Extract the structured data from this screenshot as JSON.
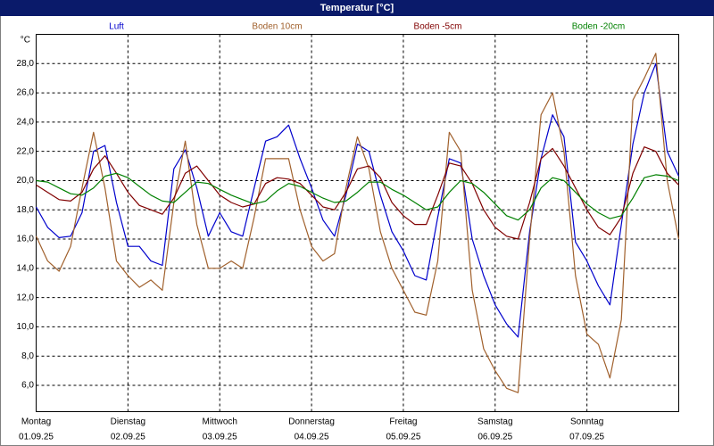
{
  "chart_data": {
    "type": "line",
    "title": "Temperatur [°C]",
    "ylabel": "°C",
    "x": [
      0,
      3,
      6,
      9,
      12,
      15,
      18,
      21,
      24,
      27,
      30,
      33,
      36,
      39,
      42,
      45,
      48,
      51,
      54,
      57,
      60,
      63,
      66,
      69,
      72,
      75,
      78,
      81,
      84,
      87,
      90,
      93,
      96,
      99,
      102,
      105,
      108,
      111,
      114,
      117,
      120,
      123,
      126,
      129,
      132,
      135,
      138,
      141,
      144,
      147,
      150,
      153,
      156,
      159,
      162,
      165,
      168
    ],
    "xlim": [
      0,
      168
    ],
    "xticks": [
      {
        "value": 0,
        "label": [
          "Montag",
          "01.09.25"
        ]
      },
      {
        "value": 24,
        "label": [
          "Dienstag",
          "02.09.25"
        ]
      },
      {
        "value": 48,
        "label": [
          "Mittwoch",
          "03.09.25"
        ]
      },
      {
        "value": 72,
        "label": [
          "Donnerstag",
          "04.09.25"
        ]
      },
      {
        "value": 96,
        "label": [
          "Freitag",
          "05.09.25"
        ]
      },
      {
        "value": 120,
        "label": [
          "Samstag",
          "06.09.25"
        ]
      },
      {
        "value": 144,
        "label": [
          "Sonntag",
          "07.09.25"
        ]
      }
    ],
    "ylim": [
      4.2,
      30
    ],
    "yticks": [
      {
        "value": 6,
        "label": "6,0"
      },
      {
        "value": 8,
        "label": "8,0"
      },
      {
        "value": 10,
        "label": "10,0"
      },
      {
        "value": 12,
        "label": "12,0"
      },
      {
        "value": 14,
        "label": "14,0"
      },
      {
        "value": 16,
        "label": "16,0"
      },
      {
        "value": 18,
        "label": "18,0"
      },
      {
        "value": 20,
        "label": "20,0"
      },
      {
        "value": 22,
        "label": "22,0"
      },
      {
        "value": 24,
        "label": "24,0"
      },
      {
        "value": 26,
        "label": "26,0"
      },
      {
        "value": 28,
        "label": "28,0"
      }
    ],
    "grid": true,
    "series": [
      {
        "name": "Luft",
        "color": "#0000cc",
        "values": [
          18.2,
          16.8,
          16.1,
          16.2,
          17.8,
          22.0,
          22.4,
          18.5,
          15.5,
          15.5,
          14.5,
          14.2,
          20.8,
          22.1,
          19.5,
          16.2,
          17.8,
          16.5,
          16.2,
          19.5,
          22.7,
          23.0,
          23.8,
          21.5,
          19.5,
          17.3,
          16.2,
          19.0,
          22.5,
          22.0,
          19.0,
          16.5,
          15.2,
          13.5,
          13.2,
          17.5,
          21.5,
          21.2,
          16.0,
          13.5,
          11.5,
          10.2,
          9.3,
          16.5,
          21.5,
          24.5,
          23.0,
          15.8,
          14.5,
          12.8,
          11.5,
          17.0,
          22.5,
          26.0,
          28.0,
          22.0,
          20.3
        ]
      },
      {
        "name": "Boden 10cm",
        "color": "#a0602c",
        "values": [
          16.2,
          14.5,
          13.8,
          15.5,
          19.5,
          23.3,
          19.5,
          14.5,
          13.5,
          12.7,
          13.2,
          12.5,
          18.5,
          22.7,
          17.0,
          14.0,
          14.0,
          14.5,
          14.0,
          17.5,
          21.5,
          21.5,
          21.5,
          18.0,
          15.5,
          14.5,
          15.0,
          19.5,
          23.0,
          20.8,
          16.5,
          14.0,
          12.5,
          11.0,
          10.8,
          14.5,
          23.3,
          22.0,
          12.5,
          8.5,
          7.0,
          5.8,
          5.5,
          16.0,
          24.5,
          26.0,
          22.0,
          13.5,
          9.5,
          8.8,
          6.5,
          10.5,
          25.5,
          27.0,
          28.7,
          20.0,
          16.0
        ]
      },
      {
        "name": "Boden -5cm",
        "color": "#800000",
        "values": [
          19.7,
          19.2,
          18.7,
          18.6,
          19.2,
          20.8,
          21.7,
          20.5,
          19.2,
          18.3,
          18.0,
          17.7,
          18.8,
          20.5,
          21.0,
          20.0,
          19.0,
          18.5,
          18.2,
          18.4,
          19.8,
          20.2,
          20.1,
          19.8,
          19.0,
          18.2,
          18.0,
          19.2,
          20.8,
          21.0,
          20.2,
          18.5,
          17.6,
          17.0,
          17.0,
          19.0,
          21.2,
          21.0,
          19.8,
          18.0,
          16.8,
          16.2,
          16.0,
          18.5,
          21.5,
          22.2,
          21.0,
          19.5,
          18.0,
          16.8,
          16.3,
          17.5,
          20.5,
          22.3,
          22.0,
          20.5,
          19.7
        ]
      },
      {
        "name": "Boden -20cm",
        "color": "#008000",
        "values": [
          20.0,
          19.9,
          19.5,
          19.1,
          19.0,
          19.5,
          20.3,
          20.5,
          20.2,
          19.6,
          19.0,
          18.6,
          18.5,
          19.2,
          19.9,
          19.8,
          19.4,
          19.0,
          18.7,
          18.4,
          18.6,
          19.3,
          19.8,
          19.6,
          19.2,
          18.8,
          18.5,
          18.6,
          19.2,
          19.9,
          19.9,
          19.4,
          19.0,
          18.5,
          18.0,
          18.2,
          19.2,
          20.0,
          19.8,
          19.2,
          18.4,
          17.6,
          17.3,
          18.0,
          19.5,
          20.2,
          20.0,
          19.2,
          18.4,
          17.8,
          17.4,
          17.6,
          18.8,
          20.2,
          20.4,
          20.3,
          20.0
        ]
      }
    ]
  }
}
